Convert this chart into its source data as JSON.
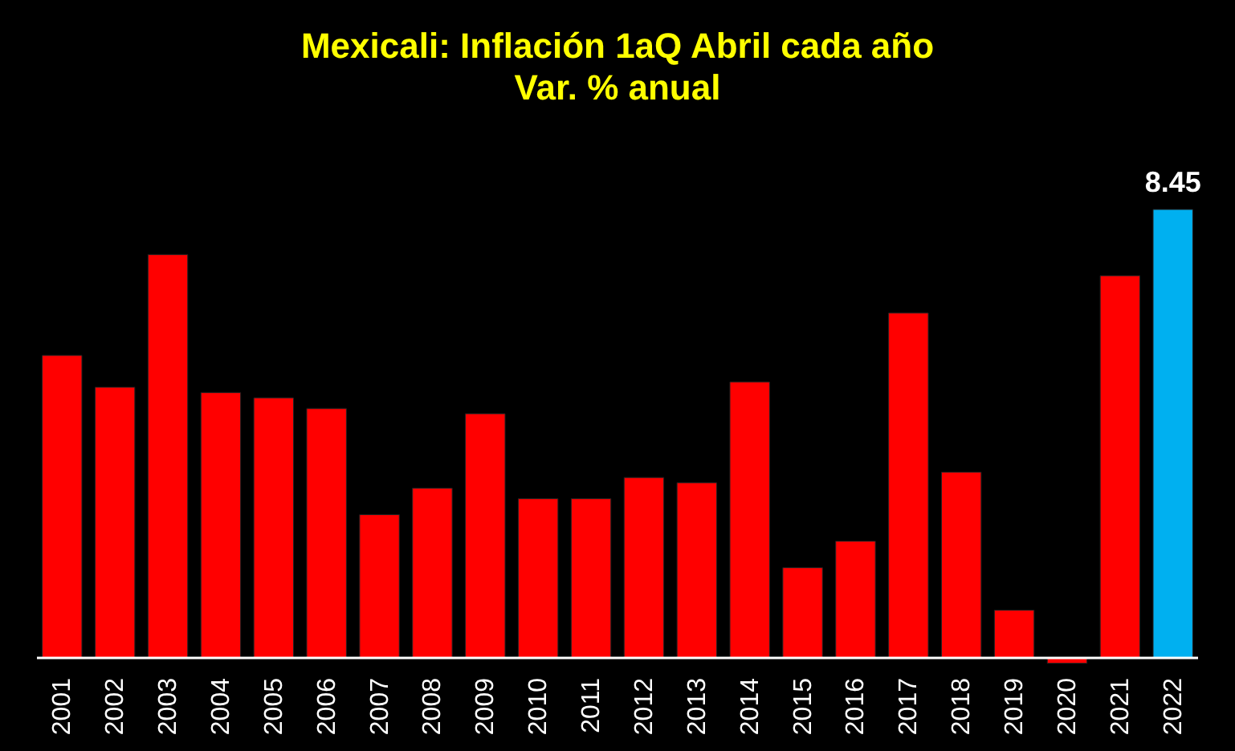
{
  "chart_data": {
    "type": "bar",
    "title": "Mexicali: Inflación 1aQ Abril cada año",
    "subtitle": "Var. %  anual",
    "categories": [
      "2001",
      "2002",
      "2003",
      "2004",
      "2005",
      "2006",
      "2007",
      "2008",
      "2009",
      "2010",
      "2011",
      "2012",
      "2013",
      "2014",
      "2015",
      "2016",
      "2017",
      "2018",
      "2019",
      "2020",
      "2021",
      "2022"
    ],
    "values": [
      5.7,
      5.1,
      7.6,
      5.0,
      4.9,
      4.7,
      2.7,
      3.2,
      4.6,
      3.0,
      3.0,
      3.4,
      3.3,
      5.2,
      1.7,
      2.2,
      6.5,
      3.5,
      0.9,
      -0.1,
      7.2,
      8.45
    ],
    "colors": [
      "#ff0000",
      "#ff0000",
      "#ff0000",
      "#ff0000",
      "#ff0000",
      "#ff0000",
      "#ff0000",
      "#ff0000",
      "#ff0000",
      "#ff0000",
      "#ff0000",
      "#ff0000",
      "#ff0000",
      "#ff0000",
      "#ff0000",
      "#ff0000",
      "#ff0000",
      "#ff0000",
      "#ff0000",
      "#ff0000",
      "#ff0000",
      "#00b0f0"
    ],
    "value_labels": [
      null,
      null,
      null,
      null,
      null,
      null,
      null,
      null,
      null,
      null,
      null,
      null,
      null,
      null,
      null,
      null,
      null,
      null,
      null,
      null,
      null,
      "8.45"
    ],
    "tick_labels": "x"
  }
}
